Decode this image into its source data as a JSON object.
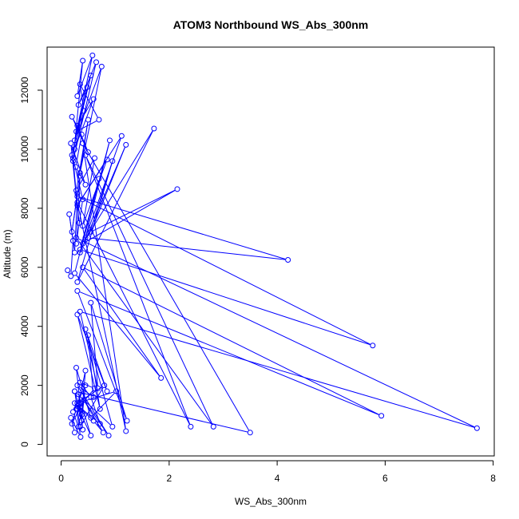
{
  "chart_data": {
    "type": "line",
    "title": "ATOM3 Northbound WS_Abs_300nm",
    "xlabel": "WS_Abs_300nm",
    "ylabel": "Altitude (m)",
    "xlim": [
      -0.26,
      8.02
    ],
    "ylim": [
      -390,
      13460
    ],
    "x_ticks": [
      0,
      2,
      4,
      6,
      8
    ],
    "y_ticks": [
      0,
      2000,
      4000,
      6000,
      8000,
      10000,
      12000
    ],
    "x_tick_labels": [
      "0",
      "2",
      "4",
      "6",
      "8"
    ],
    "y_tick_labels": [
      "0",
      "2000",
      "4000",
      "6000",
      "8000",
      "10000",
      "12000"
    ],
    "series_color": "#0000ff",
    "marker": "open-circle",
    "grid": false,
    "series": [
      {
        "x": [
          0.12,
          0.18,
          0.22,
          0.15,
          0.25,
          0.3,
          0.2,
          0.35,
          0.28,
          0.4,
          0.22,
          0.33,
          0.18,
          0.45,
          0.27,
          0.38,
          0.2,
          0.5,
          0.3,
          0.6,
          0.25,
          0.42,
          0.35,
          0.7,
          0.28,
          0.55,
          0.2,
          0.48,
          0.32,
          0.65,
          0.22,
          0.4,
          0.3,
          0.58,
          0.25,
          0.75,
          0.35,
          0.5,
          0.28,
          0.62,
          0.4,
          0.85,
          0.3,
          1.12,
          0.45,
          0.9,
          0.35,
          1.2,
          0.55,
          2.15,
          0.4,
          1.72,
          0.3,
          0.95,
          0.5,
          4.2,
          0.3,
          5.77,
          0.35,
          0.7,
          0.25,
          1.85,
          0.4,
          5.93,
          0.3,
          1.22,
          0.55,
          0.68,
          0.35,
          7.7,
          0.28,
          2.82,
          0.45,
          2.4,
          0.3,
          1.2,
          0.4,
          3.5,
          0.25,
          0.95,
          0.45,
          0.85,
          0.3,
          0.72,
          0.5,
          0.6,
          0.3,
          0.88,
          0.42,
          0.78,
          0.6,
          0.25,
          0.72,
          0.55,
          0.35,
          0.62,
          0.3,
          0.45,
          0.38,
          0.25,
          0.35,
          0.8,
          0.3,
          1.02,
          0.55,
          0.28,
          0.4,
          0.32,
          0.55,
          0.3,
          0.38,
          0.45,
          0.22,
          0.32,
          0.42,
          0.2,
          0.28,
          0.36,
          0.18,
          0.25
        ],
        "y": [
          5900,
          5700,
          6900,
          7800,
          6500,
          8500,
          7200,
          9100,
          6800,
          8300,
          9700,
          7500,
          10200,
          8800,
          9400,
          10500,
          11100,
          9900,
          10800,
          11700,
          10000,
          11300,
          12200,
          11000,
          10600,
          12500,
          9800,
          12100,
          11500,
          12950,
          9600,
          13000,
          11800,
          13180,
          10300,
          12800,
          9200,
          11000,
          8600,
          9700,
          7400,
          9650,
          8100,
          10450,
          7000,
          10300,
          6500,
          10150,
          7200,
          8650,
          6800,
          10700,
          5500,
          9600,
          7000,
          6250,
          8400,
          3350,
          6600,
          9000,
          5800,
          2250,
          6000,
          970,
          5200,
          800,
          4800,
          1900,
          4500,
          550,
          7000,
          600,
          9800,
          600,
          8200,
          450,
          10200,
          400,
          1800,
          600,
          3900,
          1800,
          4400,
          1200,
          3700,
          1600,
          2000,
          300,
          1500,
          400,
          800,
          1400,
          700,
          1600,
          2100,
          1900,
          1200,
          2500,
          1000,
          1800,
          600,
          2000,
          1400,
          1800,
          900,
          2600,
          500,
          1700,
          300,
          1300,
          800,
          2000,
          1100,
          600,
          1500,
          700,
          1200,
          250,
          900,
          400
        ]
      }
    ]
  }
}
